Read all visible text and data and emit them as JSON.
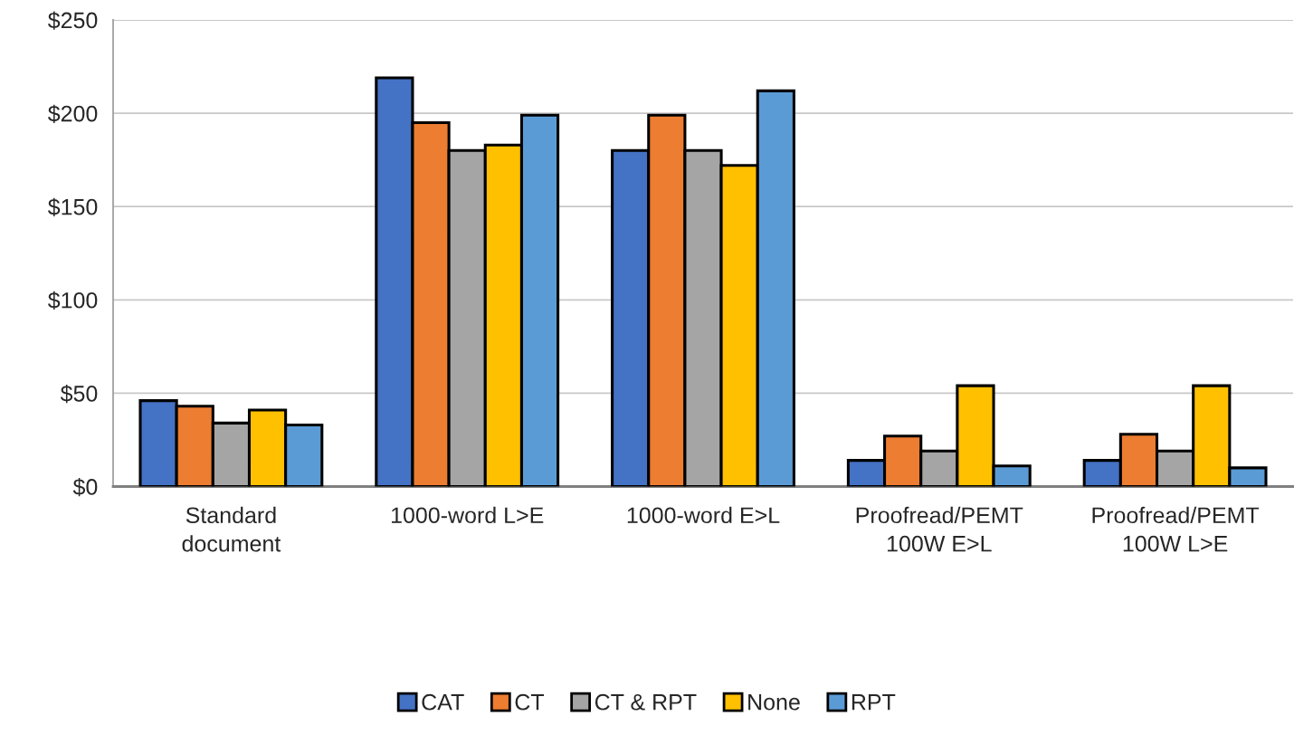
{
  "chart_data": {
    "type": "bar",
    "categories": [
      "Standard\ndocument",
      "1000-word L>E",
      "1000-word E>L",
      "Proofread/PEMT\n100W E>L",
      "Proofread/PEMT\n100W L>E"
    ],
    "series": [
      {
        "name": "CAT",
        "color": "#4472c4",
        "values": [
          46,
          219,
          180,
          14,
          14
        ]
      },
      {
        "name": "CT",
        "color": "#ed7d31",
        "values": [
          43,
          195,
          199,
          27,
          28
        ]
      },
      {
        "name": "CT & RPT",
        "color": "#a5a5a5",
        "values": [
          34,
          180,
          180,
          19,
          19
        ]
      },
      {
        "name": "None",
        "color": "#ffc000",
        "values": [
          41,
          183,
          172,
          54,
          54
        ]
      },
      {
        "name": "RPT",
        "color": "#5b9bd5",
        "values": [
          33,
          199,
          212,
          11,
          10
        ]
      }
    ],
    "ylim": [
      0,
      250
    ],
    "yticks": [
      {
        "value": 0,
        "label": "$0"
      },
      {
        "value": 50,
        "label": "$50"
      },
      {
        "value": 100,
        "label": "$100"
      },
      {
        "value": 150,
        "label": "$150"
      },
      {
        "value": 200,
        "label": "$200"
      },
      {
        "value": 250,
        "label": "$250"
      }
    ],
    "grid": "y",
    "legend": "bottom"
  }
}
